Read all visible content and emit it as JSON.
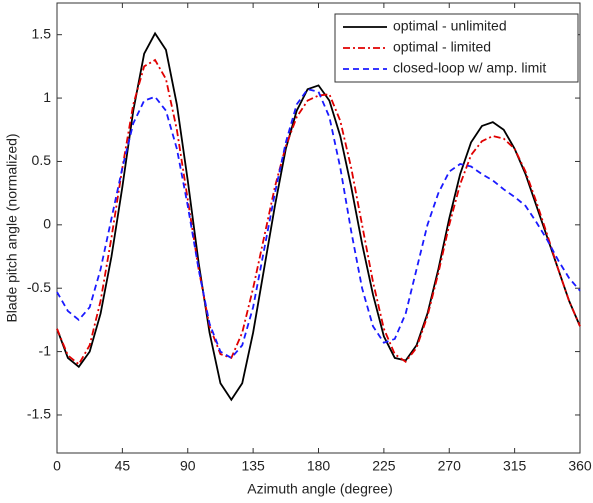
{
  "chart_data": {
    "type": "line",
    "xlabel": "Azimuth angle (degree)",
    "ylabel": "Blade pitch angle (normalized)",
    "x": [
      0,
      7.5,
      15,
      22.5,
      30,
      37.5,
      45,
      52.5,
      60,
      67.5,
      75,
      82.5,
      90,
      97.5,
      105,
      112.5,
      120,
      127.5,
      135,
      142.5,
      150,
      157.5,
      165,
      172.5,
      180,
      187.5,
      195,
      202.5,
      210,
      217.5,
      225,
      232.5,
      240,
      247.5,
      255,
      262.5,
      270,
      277.5,
      285,
      292.5,
      300,
      307.5,
      315,
      322.5,
      330,
      337.5,
      345,
      352.5,
      360
    ],
    "series": [
      {
        "name": "optimal - unlimited",
        "color": "#000000",
        "style": "solid",
        "values": [
          -0.82,
          -1.05,
          -1.12,
          -1.0,
          -0.7,
          -0.25,
          0.3,
          0.9,
          1.35,
          1.51,
          1.38,
          0.95,
          0.35,
          -0.3,
          -0.85,
          -1.25,
          -1.38,
          -1.25,
          -0.85,
          -0.35,
          0.15,
          0.6,
          0.9,
          1.07,
          1.1,
          0.98,
          0.7,
          0.3,
          -0.15,
          -0.55,
          -0.88,
          -1.05,
          -1.07,
          -0.95,
          -0.7,
          -0.35,
          0.05,
          0.4,
          0.65,
          0.78,
          0.81,
          0.75,
          0.6,
          0.4,
          0.15,
          -0.1,
          -0.35,
          -0.6,
          -0.8
        ]
      },
      {
        "name": "optimal - limited",
        "color": "#e00000",
        "style": "dashdot",
        "values": [
          -0.82,
          -1.03,
          -1.1,
          -0.95,
          -0.6,
          -0.1,
          0.45,
          0.95,
          1.25,
          1.3,
          1.15,
          0.75,
          0.2,
          -0.35,
          -0.8,
          -1.02,
          -1.05,
          -0.85,
          -0.5,
          -0.1,
          0.3,
          0.62,
          0.85,
          0.98,
          1.02,
          1.03,
          0.82,
          0.45,
          0.0,
          -0.45,
          -0.82,
          -1.02,
          -1.08,
          -0.97,
          -0.72,
          -0.38,
          0.0,
          0.32,
          0.55,
          0.66,
          0.7,
          0.68,
          0.6,
          0.42,
          0.18,
          -0.08,
          -0.35,
          -0.6,
          -0.8
        ]
      },
      {
        "name": "closed-loop w/ amp. limit",
        "color": "#1a1aff",
        "style": "dashed",
        "values": [
          -0.53,
          -0.68,
          -0.75,
          -0.65,
          -0.35,
          0.05,
          0.45,
          0.8,
          0.98,
          1.01,
          0.9,
          0.6,
          0.15,
          -0.35,
          -0.78,
          -1.0,
          -1.05,
          -0.95,
          -0.65,
          -0.2,
          0.25,
          0.65,
          0.95,
          1.07,
          1.05,
          0.85,
          0.45,
          -0.05,
          -0.5,
          -0.8,
          -0.93,
          -0.9,
          -0.7,
          -0.35,
          0.0,
          0.25,
          0.42,
          0.48,
          0.46,
          0.4,
          0.35,
          0.28,
          0.22,
          0.15,
          0.02,
          -0.12,
          -0.28,
          -0.42,
          -0.52
        ]
      }
    ],
    "xlim": [
      0,
      360
    ],
    "xticks": [
      0,
      45,
      90,
      135,
      180,
      225,
      270,
      315,
      360
    ],
    "ylim": [
      -1.8,
      1.75
    ],
    "yticks": [
      -1.5,
      -1,
      -0.5,
      0,
      0.5,
      1,
      1.5
    ],
    "grid": false,
    "legend": "upper right"
  }
}
